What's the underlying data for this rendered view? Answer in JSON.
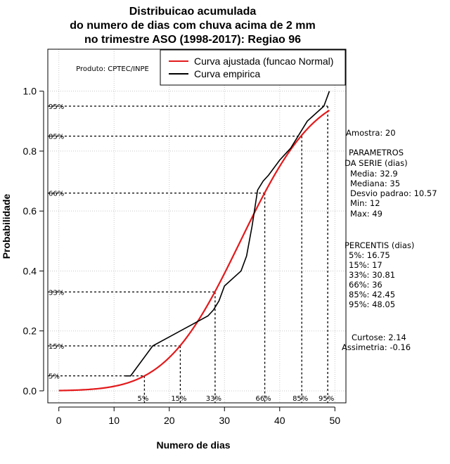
{
  "chart_data": {
    "type": "line",
    "title": [
      "Distribuicao acumulada",
      "do numero de dias com chuva acima de 2 mm",
      "no trimestre ASO (1998-2017): Regiao 96"
    ],
    "xlabel": "Numero de dias",
    "ylabel": "Probabilidade",
    "xlim": [
      -2,
      52
    ],
    "ylim": [
      -0.04,
      1.14
    ],
    "xticks": [
      0,
      10,
      20,
      30,
      40,
      50
    ],
    "yticks": [
      0.0,
      0.2,
      0.4,
      0.6,
      0.8,
      1.0
    ],
    "ytick_labels": [
      "0.0",
      "0.2",
      "0.4",
      "0.6",
      "0.8",
      "1.0"
    ],
    "grid": true,
    "producer": "Produto: CPTEC/INPE",
    "legend": {
      "position": "top-right",
      "entries": [
        {
          "label": "Curva ajustada (funcao Normal)",
          "color": "#e31a1c"
        },
        {
          "label": "Curva empirica",
          "color": "#000000"
        }
      ]
    },
    "fitted_curve": {
      "name": "Curva ajustada (funcao Normal)",
      "distribution": "normal",
      "mean": 32.9,
      "sd": 10.57,
      "x_range": [
        0,
        49
      ],
      "color": "#e31a1c"
    },
    "empirical": {
      "name": "Curva empirica",
      "color": "#000000",
      "x": [
        12,
        13,
        17,
        24,
        27,
        28,
        29,
        30,
        33,
        34,
        35,
        36,
        37,
        38,
        40,
        41,
        42,
        45,
        48,
        49
      ],
      "y": [
        0.05,
        0.05,
        0.15,
        0.22,
        0.25,
        0.27,
        0.3,
        0.35,
        0.4,
        0.45,
        0.55,
        0.67,
        0.7,
        0.72,
        0.77,
        0.79,
        0.81,
        0.9,
        0.95,
        1.0
      ]
    },
    "percentile_lines": [
      {
        "label": "5%",
        "p": 0.05,
        "x": 15.5
      },
      {
        "label": "15%",
        "p": 0.15,
        "x": 22.0
      },
      {
        "label": "33%",
        "p": 0.33,
        "x": 28.3
      },
      {
        "label": "66%",
        "p": 0.66,
        "x": 37.3
      },
      {
        "label": "85%",
        "p": 0.85,
        "x": 44.0
      },
      {
        "label": "95%",
        "p": 0.95,
        "x": 48.7
      }
    ],
    "stats": {
      "amostra": "Amostra: 20",
      "params": [
        "PARAMETROS",
        "DA SERIE (dias)",
        "Media: 32.9",
        "Mediana: 35",
        "Desvio padrao: 10.57",
        "Min: 12",
        "Max: 49"
      ],
      "percentis": [
        "PERCENTIS (dias)",
        "5%: 16.75",
        "15%: 17",
        "33%: 30.81",
        "66%: 36",
        "85%: 42.45",
        "95%: 48.05"
      ],
      "shape": [
        "Curtose: 2.14",
        "Assimetria: -0.16"
      ]
    }
  }
}
